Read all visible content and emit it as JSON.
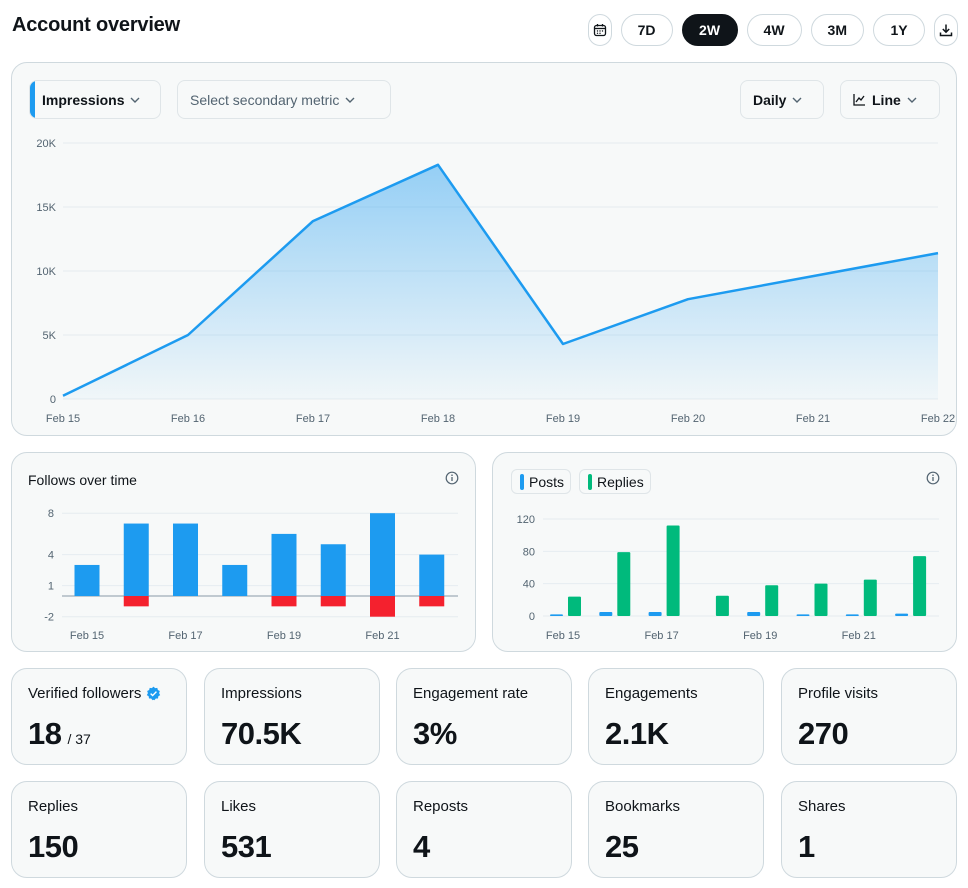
{
  "header": {
    "title": "Account overview",
    "ranges": [
      "7D",
      "2W",
      "4W",
      "3M",
      "1Y"
    ],
    "active_range": "2W"
  },
  "main_chart": {
    "primary_metric": "Impressions",
    "secondary_metric_placeholder": "Select secondary metric",
    "interval": "Daily",
    "chart_type_label": "Line",
    "accent_color": "#1d9bf0"
  },
  "follows": {
    "title": "Follows over time"
  },
  "posts_replies": {
    "legend": [
      {
        "label": "Posts",
        "color": "#1d9bf0"
      },
      {
        "label": "Replies",
        "color": "#00ba7c"
      }
    ]
  },
  "stats": [
    {
      "label": "Verified followers",
      "value": "18",
      "sub": "/ 37",
      "verified": true
    },
    {
      "label": "Impressions",
      "value": "70.5K"
    },
    {
      "label": "Engagement rate",
      "value": "3%"
    },
    {
      "label": "Engagements",
      "value": "2.1K"
    },
    {
      "label": "Profile visits",
      "value": "270"
    },
    {
      "label": "Replies",
      "value": "150"
    },
    {
      "label": "Likes",
      "value": "531"
    },
    {
      "label": "Reposts",
      "value": "4"
    },
    {
      "label": "Bookmarks",
      "value": "25"
    },
    {
      "label": "Shares",
      "value": "1"
    }
  ],
  "chart_data": [
    {
      "type": "area",
      "x": [
        "Feb 15",
        "Feb 16",
        "Feb 17",
        "Feb 18",
        "Feb 19",
        "Feb 20",
        "Feb 21",
        "Feb 22"
      ],
      "series": [
        {
          "name": "Impressions",
          "values": [
            250,
            5000,
            13900,
            18300,
            4300,
            7800,
            9600,
            11400
          ]
        }
      ],
      "yticks": [
        "0",
        "5K",
        "10K",
        "15K",
        "20K"
      ],
      "ylim": [
        0,
        20000
      ],
      "grid": true,
      "color": "#1d9bf0"
    },
    {
      "type": "bar",
      "title": "Follows over time",
      "x": [
        "Feb 15",
        "Feb 16",
        "Feb 17",
        "Feb 18",
        "Feb 19",
        "Feb 20",
        "Feb 21",
        "Feb 22"
      ],
      "xticks": [
        "Feb 15",
        "Feb 17",
        "Feb 19",
        "Feb 21"
      ],
      "yticks": [
        "8",
        "4",
        "1",
        "-2"
      ],
      "series": [
        {
          "values": [
            3,
            7,
            7,
            3,
            6,
            5,
            8,
            4
          ],
          "color": "#1d9bf0"
        },
        {
          "values": [
            0,
            -1,
            0,
            0,
            -1,
            -1,
            -2,
            -1
          ],
          "color": "#f4212e"
        }
      ],
      "ylim": [
        -2,
        8
      ]
    },
    {
      "type": "bar",
      "x": [
        "Feb 15",
        "Feb 16",
        "Feb 17",
        "Feb 18",
        "Feb 19",
        "Feb 20",
        "Feb 21",
        "Feb 22"
      ],
      "xticks": [
        "Feb 15",
        "Feb 17",
        "Feb 19",
        "Feb 21"
      ],
      "yticks": [
        "0",
        "40",
        "80",
        "120"
      ],
      "series": [
        {
          "name": "Posts",
          "values": [
            2,
            5,
            5,
            0,
            5,
            2,
            2,
            3
          ],
          "color": "#1d9bf0"
        },
        {
          "name": "Replies",
          "values": [
            24,
            79,
            112,
            25,
            38,
            40,
            45,
            74
          ],
          "color": "#00ba7c"
        }
      ],
      "ylim": [
        0,
        120
      ]
    }
  ]
}
